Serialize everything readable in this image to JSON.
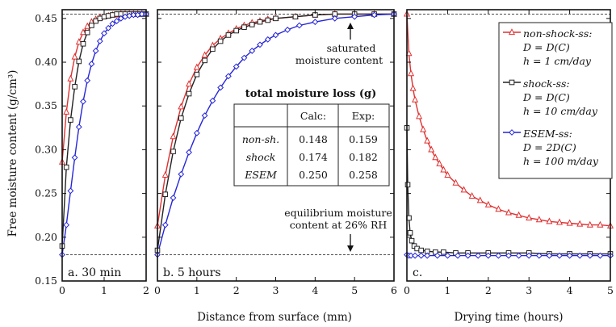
{
  "chart_data": [
    {
      "panel": "a",
      "type": "line",
      "panel_label": "a. 30 min",
      "xlim": [
        0,
        2
      ],
      "ylim": [
        0.15,
        0.46
      ],
      "xticks": [
        "0",
        "1",
        "2"
      ],
      "yticks": [
        "0.15",
        "0.20",
        "0.25",
        "0.30",
        "0.35",
        "0.40",
        "0.45"
      ],
      "ytick_values": [
        0.15,
        0.2,
        0.25,
        0.3,
        0.35,
        0.4,
        0.45
      ],
      "xtick_values": [
        0,
        1,
        2
      ],
      "ylabel": "Free moisture content (g/cm³)",
      "reference_lines": [
        0.455,
        0.18
      ],
      "series": [
        {
          "name": "non-shock-ss",
          "color": "#e03030",
          "marker": "triangle",
          "x": [
            0,
            0.1,
            0.2,
            0.3,
            0.4,
            0.5,
            0.6,
            0.7,
            0.8,
            0.9,
            1.0,
            1.1,
            1.2,
            1.3,
            1.4,
            1.5,
            1.6,
            1.7,
            1.8,
            1.9,
            2.0
          ],
          "y": [
            0.286,
            0.343,
            0.381,
            0.406,
            0.423,
            0.434,
            0.441,
            0.446,
            0.449,
            0.451,
            0.452,
            0.453,
            0.454,
            0.454,
            0.455,
            0.455,
            0.455,
            0.455,
            0.455,
            0.455,
            0.455
          ]
        },
        {
          "name": "shock-ss",
          "color": "#222222",
          "marker": "square",
          "x": [
            0,
            0.1,
            0.2,
            0.3,
            0.4,
            0.5,
            0.6,
            0.7,
            0.8,
            0.9,
            1.0,
            1.1,
            1.2,
            1.3,
            1.4,
            1.5,
            1.6,
            1.7,
            1.8,
            1.9,
            2.0
          ],
          "y": [
            0.19,
            0.28,
            0.334,
            0.372,
            0.401,
            0.421,
            0.434,
            0.442,
            0.447,
            0.45,
            0.452,
            0.453,
            0.454,
            0.455,
            0.455,
            0.455,
            0.455,
            0.455,
            0.455,
            0.455,
            0.455
          ]
        },
        {
          "name": "ESEM-ss",
          "color": "#2525d8",
          "marker": "diamond",
          "x": [
            0,
            0.1,
            0.2,
            0.3,
            0.4,
            0.5,
            0.6,
            0.7,
            0.8,
            0.9,
            1.0,
            1.1,
            1.2,
            1.3,
            1.4,
            1.5,
            1.6,
            1.7,
            1.8,
            1.9,
            2.0
          ],
          "y": [
            0.18,
            0.214,
            0.253,
            0.291,
            0.326,
            0.355,
            0.379,
            0.398,
            0.413,
            0.424,
            0.433,
            0.439,
            0.444,
            0.447,
            0.45,
            0.452,
            0.453,
            0.454,
            0.454,
            0.455,
            0.455
          ]
        }
      ]
    },
    {
      "panel": "b",
      "type": "line",
      "panel_label": "b. 5 hours",
      "xlim": [
        0,
        6
      ],
      "ylim": [
        0.15,
        0.46
      ],
      "xticks": [
        "0",
        "1",
        "2",
        "3",
        "4",
        "5",
        "6"
      ],
      "xtick_values": [
        0,
        1,
        2,
        3,
        4,
        5,
        6
      ],
      "xlabel": "Distance from surface (mm)",
      "reference_lines": [
        0.455,
        0.18
      ],
      "series": [
        {
          "name": "non-shock-ss",
          "color": "#e03030",
          "marker": "triangle",
          "x": [
            0,
            0.2,
            0.4,
            0.6,
            0.8,
            1.0,
            1.2,
            1.4,
            1.6,
            1.8,
            2.0,
            2.2,
            2.4,
            2.6,
            2.8,
            3.0,
            3.5,
            4.0,
            4.5,
            5.0,
            5.5,
            6.0
          ],
          "y": [
            0.213,
            0.271,
            0.315,
            0.349,
            0.375,
            0.394,
            0.408,
            0.419,
            0.427,
            0.433,
            0.438,
            0.442,
            0.445,
            0.447,
            0.449,
            0.45,
            0.452,
            0.454,
            0.455,
            0.455,
            0.455,
            0.455
          ]
        },
        {
          "name": "shock-ss",
          "color": "#222222",
          "marker": "square",
          "x": [
            0,
            0.2,
            0.4,
            0.6,
            0.8,
            1.0,
            1.2,
            1.4,
            1.6,
            1.8,
            2.0,
            2.2,
            2.4,
            2.6,
            2.8,
            3.0,
            3.5,
            4.0,
            4.5,
            5.0,
            5.5,
            6.0
          ],
          "y": [
            0.185,
            0.249,
            0.298,
            0.336,
            0.364,
            0.386,
            0.402,
            0.415,
            0.424,
            0.431,
            0.436,
            0.44,
            0.443,
            0.446,
            0.448,
            0.45,
            0.452,
            0.454,
            0.455,
            0.455,
            0.455,
            0.455
          ]
        },
        {
          "name": "ESEM-ss",
          "color": "#2525d8",
          "marker": "diamond",
          "x": [
            0,
            0.2,
            0.4,
            0.6,
            0.8,
            1.0,
            1.2,
            1.4,
            1.6,
            1.8,
            2.0,
            2.2,
            2.4,
            2.6,
            2.8,
            3.0,
            3.3,
            3.6,
            4.0,
            4.5,
            5.0,
            5.5,
            6.0
          ],
          "y": [
            0.18,
            0.214,
            0.245,
            0.272,
            0.297,
            0.319,
            0.339,
            0.356,
            0.371,
            0.384,
            0.395,
            0.405,
            0.413,
            0.42,
            0.426,
            0.431,
            0.437,
            0.442,
            0.446,
            0.45,
            0.452,
            0.454,
            0.455
          ]
        }
      ],
      "annotations": {
        "saturated": [
          "saturated",
          "moisture content"
        ],
        "equilibrium": [
          "equilibrium moisture",
          "content at 26% RH"
        ]
      },
      "table": {
        "title": "total moisture loss (g)",
        "headers": [
          "",
          "Calc:",
          "Exp:"
        ],
        "rows": [
          [
            "non-sh.",
            "0.148",
            "0.159"
          ],
          [
            "shock",
            "0.174",
            "0.182"
          ],
          [
            "ESEM",
            "0.250",
            "0.258"
          ]
        ]
      }
    },
    {
      "panel": "c",
      "type": "line",
      "panel_label": "c.",
      "xlim": [
        0,
        5
      ],
      "ylim": [
        0.15,
        0.46
      ],
      "xticks": [
        "0",
        "1",
        "2",
        "3",
        "4",
        "5"
      ],
      "xtick_values": [
        0,
        1,
        2,
        3,
        4,
        5
      ],
      "xlabel": "Drying time (hours)",
      "reference_lines": [
        0.455
      ],
      "series": [
        {
          "name": "non-shock-ss",
          "color": "#e03030",
          "marker": "triangle",
          "x": [
            0,
            0.05,
            0.1,
            0.15,
            0.2,
            0.3,
            0.4,
            0.5,
            0.6,
            0.7,
            0.8,
            0.9,
            1.0,
            1.2,
            1.4,
            1.6,
            1.8,
            2.0,
            2.25,
            2.5,
            2.75,
            3.0,
            3.25,
            3.5,
            3.75,
            4.0,
            4.25,
            4.5,
            4.75,
            5.0
          ],
          "y": [
            0.455,
            0.41,
            0.387,
            0.37,
            0.357,
            0.338,
            0.323,
            0.31,
            0.3,
            0.291,
            0.284,
            0.277,
            0.271,
            0.262,
            0.254,
            0.247,
            0.242,
            0.237,
            0.232,
            0.228,
            0.225,
            0.222,
            0.22,
            0.218,
            0.217,
            0.216,
            0.215,
            0.214,
            0.214,
            0.213
          ]
        },
        {
          "name": "shock-ss",
          "color": "#222222",
          "marker": "square",
          "x": [
            0,
            0.02,
            0.05,
            0.08,
            0.12,
            0.18,
            0.25,
            0.35,
            0.5,
            0.7,
            0.9,
            1.2,
            1.5,
            2.0,
            2.5,
            3.0,
            3.5,
            4.0,
            4.5,
            5.0
          ],
          "y": [
            0.325,
            0.26,
            0.222,
            0.205,
            0.196,
            0.19,
            0.187,
            0.185,
            0.184,
            0.183,
            0.183,
            0.182,
            0.182,
            0.182,
            0.182,
            0.182,
            0.181,
            0.181,
            0.181,
            0.181
          ]
        },
        {
          "name": "ESEM-ss",
          "color": "#2525d8",
          "marker": "diamond",
          "x": [
            0,
            0.05,
            0.1,
            0.2,
            0.35,
            0.5,
            0.75,
            1.0,
            1.25,
            1.5,
            1.75,
            2.0,
            2.25,
            2.5,
            2.75,
            3.0,
            3.25,
            3.5,
            3.75,
            4.0,
            4.25,
            4.5,
            4.75,
            5.0
          ],
          "y": [
            0.18,
            0.179,
            0.179,
            0.179,
            0.179,
            0.179,
            0.179,
            0.179,
            0.179,
            0.179,
            0.179,
            0.179,
            0.179,
            0.179,
            0.179,
            0.179,
            0.179,
            0.179,
            0.179,
            0.179,
            0.179,
            0.179,
            0.179,
            0.179
          ]
        }
      ],
      "legend": {
        "placement": "top-right",
        "entries": [
          {
            "name": "non-shock-ss:",
            "l1": "D = D(C)",
            "l2": "h = 1 cm/day",
            "color": "#e03030",
            "marker": "triangle"
          },
          {
            "name": "shock-ss:",
            "l1": "D = D(C)",
            "l2": "h = 10 cm/day",
            "color": "#222222",
            "marker": "square"
          },
          {
            "name": "ESEM-ss:",
            "l1": "D = 2D(C)",
            "l2": "h = 100 m/day",
            "color": "#2525d8",
            "marker": "diamond"
          }
        ]
      }
    }
  ]
}
